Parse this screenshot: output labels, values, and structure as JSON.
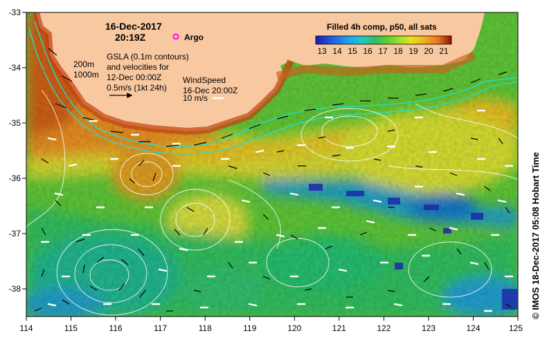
{
  "header": {
    "date": "16-Dec-2017",
    "time": "20:19Z"
  },
  "argo_label": "Argo",
  "gsla": {
    "line1": "GSLA (0.1m contours)",
    "line2": "and velocities for",
    "line3": "12-Dec 00:00Z",
    "scale_label": "0.5m/s (1kt 24h)"
  },
  "isobaths": {
    "shallow": "200m",
    "deep": "1000m"
  },
  "wind": {
    "line1": "WindSpeed",
    "line2": "16-Dec 20:00Z",
    "scale_label": "10 m/s"
  },
  "colorbar": {
    "title": "Filled 4h comp, p50, all sats",
    "ticks": [
      "13",
      "14",
      "15",
      "16",
      "17",
      "18",
      "19",
      "20",
      "21"
    ],
    "colors": [
      "#1a1ab4",
      "#2060e0",
      "#20a0f0",
      "#20c8c8",
      "#30c060",
      "#60d030",
      "#a0e030",
      "#e8e020",
      "#f0b020",
      "#e87818",
      "#c83010",
      "#901008"
    ]
  },
  "axes": {
    "x_ticks": [
      "114",
      "115",
      "116",
      "117",
      "118",
      "119",
      "120",
      "121",
      "122",
      "123",
      "124",
      "125"
    ],
    "y_ticks": [
      "-33",
      "-34",
      "-35",
      "-36",
      "-37",
      "-38"
    ]
  },
  "credit": "© IMOS 18-Dec-2017 05:08 Hobart Time",
  "colors": {
    "land": "#f8c8a0",
    "argo": "#ff00ff",
    "isobath": "#20e0d0",
    "frame": "#000000"
  }
}
